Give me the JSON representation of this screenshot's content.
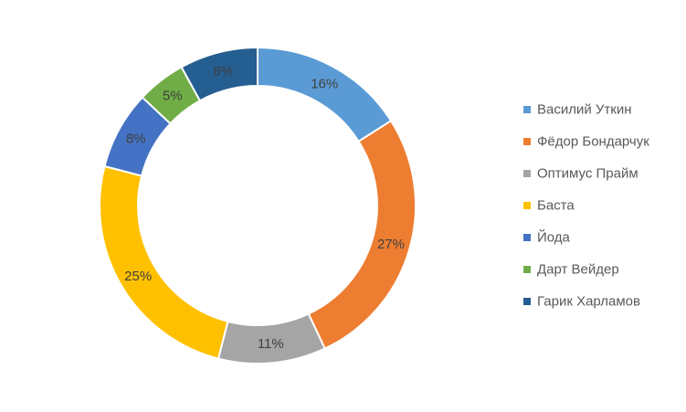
{
  "chart_data": {
    "type": "pie",
    "variant": "doughnut",
    "title": "",
    "legend_position": "right",
    "slices": [
      {
        "name": "Василий Уткин",
        "value": 16,
        "label": "16%",
        "color": "#5B9BD5"
      },
      {
        "name": "Фёдор Бондарчук",
        "value": 27,
        "label": "27%",
        "color": "#ED7D31"
      },
      {
        "name": "Оптимус Прайм",
        "value": 11,
        "label": "11%",
        "color": "#A5A5A5"
      },
      {
        "name": "Баста",
        "value": 25,
        "label": "25%",
        "color": "#FFC000"
      },
      {
        "name": "Йода",
        "value": 8,
        "label": "8%",
        "color": "#4472C4"
      },
      {
        "name": "Дарт Вейдер",
        "value": 5,
        "label": "5%",
        "color": "#70AD47"
      },
      {
        "name": "Гарик Харламов",
        "value": 8,
        "label": "8%",
        "color": "#255E91"
      }
    ]
  }
}
